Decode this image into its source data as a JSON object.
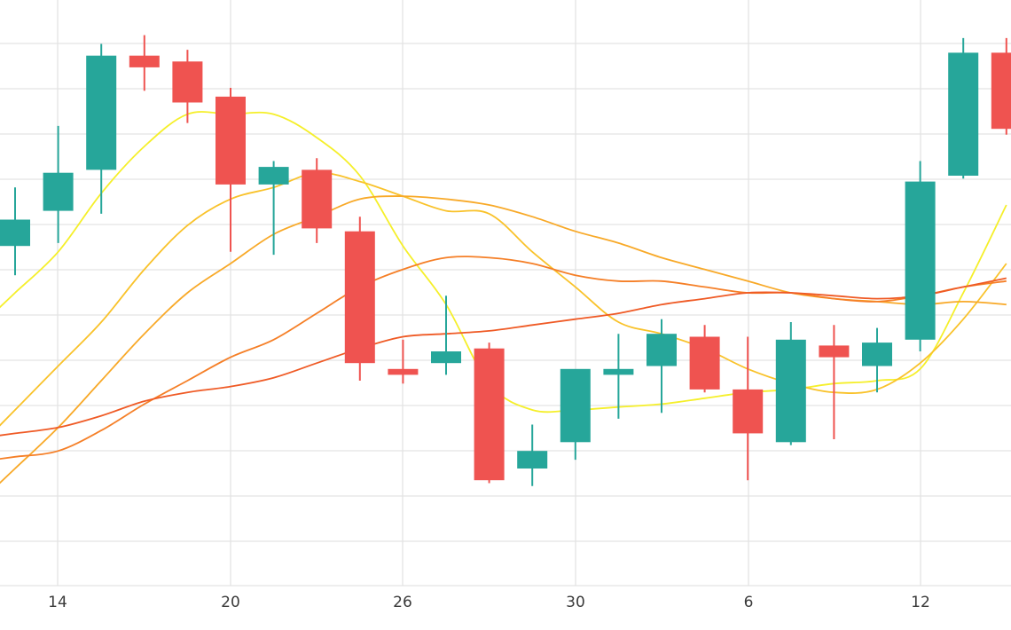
{
  "chart_data": {
    "type": "candlestick",
    "title": "",
    "xlabel": "",
    "ylabel": "",
    "grid": true,
    "legend": "none",
    "x_tick_labels": [
      "14",
      "20",
      "26",
      "30",
      "6",
      "12"
    ],
    "ylim": [
      0,
      100
    ],
    "colors": {
      "up": "#26a69a",
      "down": "#ef5350",
      "grid": "#e3e3e3",
      "background": "#ffffff"
    },
    "candles": [
      {
        "i": 0,
        "open": 58.0,
        "high": 68.0,
        "low": 53.0,
        "close": 62.5
      },
      {
        "i": 1,
        "open": 64.0,
        "high": 78.5,
        "low": 58.5,
        "close": 70.5
      },
      {
        "i": 2,
        "open": 71.0,
        "high": 92.5,
        "low": 63.5,
        "close": 90.5
      },
      {
        "i": 3,
        "open": 90.5,
        "high": 94.0,
        "low": 84.5,
        "close": 88.5
      },
      {
        "i": 4,
        "open": 89.5,
        "high": 91.5,
        "low": 79.0,
        "close": 82.5
      },
      {
        "i": 5,
        "open": 83.5,
        "high": 85.0,
        "low": 57.0,
        "close": 68.5
      },
      {
        "i": 6,
        "open": 68.5,
        "high": 72.5,
        "low": 56.5,
        "close": 71.5
      },
      {
        "i": 7,
        "open": 71.0,
        "high": 73.0,
        "low": 58.5,
        "close": 61.0
      },
      {
        "i": 8,
        "open": 60.5,
        "high": 63.0,
        "low": 35.0,
        "close": 38.0
      },
      {
        "i": 9,
        "open": 37.0,
        "high": 42.0,
        "low": 34.5,
        "close": 36.0
      },
      {
        "i": 10,
        "open": 38.0,
        "high": 49.5,
        "low": 36.0,
        "close": 40.0
      },
      {
        "i": 11,
        "open": 40.5,
        "high": 41.5,
        "low": 17.5,
        "close": 18.0
      },
      {
        "i": 12,
        "open": 20.0,
        "high": 27.5,
        "low": 17.0,
        "close": 23.0
      },
      {
        "i": 13,
        "open": 24.5,
        "high": 36.5,
        "low": 21.5,
        "close": 37.0
      },
      {
        "i": 14,
        "open": 36.0,
        "high": 43.0,
        "low": 28.5,
        "close": 37.0
      },
      {
        "i": 15,
        "open": 37.5,
        "high": 45.5,
        "low": 29.5,
        "close": 43.0
      },
      {
        "i": 16,
        "open": 42.5,
        "high": 44.5,
        "low": 33.0,
        "close": 33.5
      },
      {
        "i": 17,
        "open": 33.5,
        "high": 42.5,
        "low": 18.0,
        "close": 26.0
      },
      {
        "i": 18,
        "open": 24.5,
        "high": 45.0,
        "low": 24.0,
        "close": 42.0
      },
      {
        "i": 19,
        "open": 41.0,
        "high": 44.5,
        "low": 25.0,
        "close": 39.0
      },
      {
        "i": 20,
        "open": 37.5,
        "high": 44.0,
        "low": 33.0,
        "close": 41.5
      },
      {
        "i": 21,
        "open": 42.0,
        "high": 72.5,
        "low": 40.0,
        "close": 69.0
      },
      {
        "i": 22,
        "open": 70.0,
        "high": 93.5,
        "low": 69.5,
        "close": 91.0
      },
      {
        "i": 23,
        "open": 91.0,
        "high": 93.5,
        "low": 77.0,
        "close": 78.0
      }
    ],
    "moving_averages": [
      {
        "color": "#f5ef2a",
        "values": [
          50,
          57,
          67,
          75,
          80.5,
          80.5,
          80.5,
          76.5,
          70,
          58,
          48,
          34.5,
          30,
          30,
          30.5,
          31,
          32,
          33,
          33.5,
          34.5,
          35,
          37,
          50,
          65
        ]
      },
      {
        "color": "#f9c22a",
        "values": [
          30,
          37.5,
          45,
          54,
          61.5,
          66,
          68,
          70.5,
          69,
          66.5,
          64,
          63.5,
          57,
          51,
          45,
          43,
          40.5,
          37,
          34.5,
          33,
          33.5,
          38,
          45.5,
          55
        ]
      },
      {
        "color": "#f8a928",
        "values": [
          20,
          27,
          35,
          43,
          50,
          55,
          60,
          63,
          66,
          66.5,
          66,
          65,
          63,
          60.5,
          58.5,
          56,
          54,
          52,
          50,
          49,
          48.5,
          48,
          48.5,
          48
        ]
      },
      {
        "color": "#f57f27",
        "values": [
          22,
          23,
          26.5,
          31,
          35,
          39,
          42,
          46.5,
          51,
          54,
          56,
          56,
          55,
          53,
          52,
          52,
          51,
          50,
          50,
          49,
          48.5,
          49.5,
          51,
          52
        ]
      },
      {
        "color": "#ef5a25",
        "values": [
          26,
          27,
          29,
          31.5,
          33,
          34,
          35.5,
          38,
          40.5,
          42.5,
          43,
          43.5,
          44.5,
          45.5,
          46.5,
          48,
          49,
          50,
          50,
          49.5,
          49,
          49.5,
          51,
          52.5
        ]
      }
    ]
  }
}
